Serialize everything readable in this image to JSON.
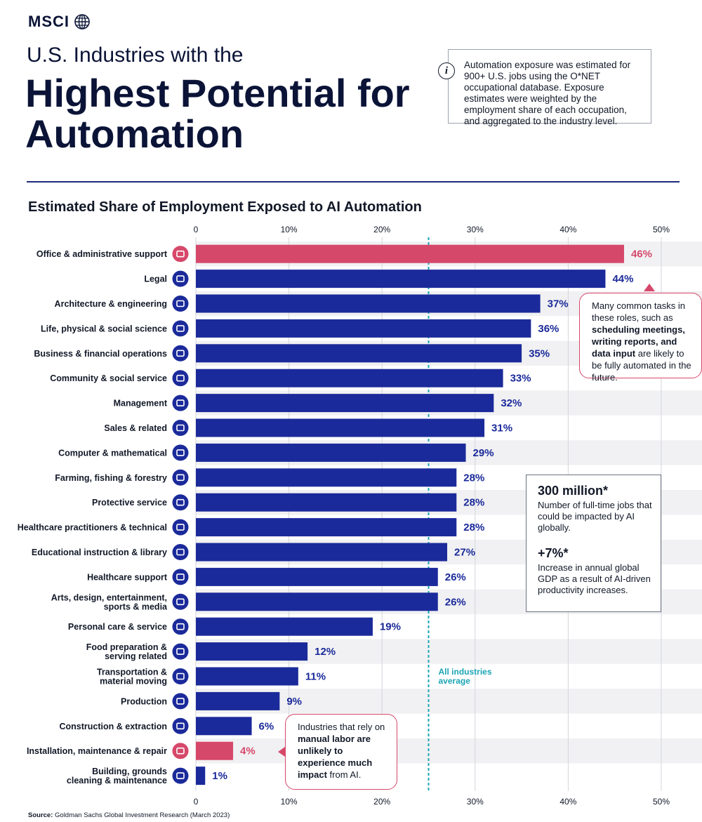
{
  "brand": {
    "name": "MSCI"
  },
  "header": {
    "subtitle": "U.S. Industries with the",
    "title": "Highest Potential for Automation"
  },
  "info": {
    "icon": "info-icon",
    "text": "Automation exposure was estimated for 900+ U.S. jobs using the O*NET occupational database. Exposure estimates were weighted by the employment share of each occupation, and aggregated to the industry level."
  },
  "chart_title": "Estimated Share of Employment Exposed to AI Automation",
  "chart_data": {
    "type": "bar",
    "orientation": "horizontal",
    "title": "Estimated Share of Employment Exposed to AI Automation",
    "xlim": [
      0,
      50
    ],
    "x_ticks": [
      "0",
      "10%",
      "20%",
      "30%",
      "40%",
      "50%"
    ],
    "x_tick_values": [
      0,
      10,
      20,
      30,
      40,
      50
    ],
    "grid": true,
    "categories": [
      "Office & administrative support",
      "Legal",
      "Architecture & engineering",
      "Life, physical & social science",
      "Business & financial operations",
      "Community & social service",
      "Management",
      "Sales & related",
      "Computer & mathematical",
      "Farming, fishing & forestry",
      "Protective service",
      "Healthcare practitioners & technical",
      "Educational instruction & library",
      "Healthcare support",
      "Arts, design, entertainment, sports & media",
      "Personal care & service",
      "Food preparation & serving related",
      "Transportation & material moving",
      "Production",
      "Construction & extraction",
      "Installation, maintenance & repair",
      "Building, grounds cleaning & maintenance"
    ],
    "label_lines": [
      [
        "Office & administrative support"
      ],
      [
        "Legal"
      ],
      [
        "Architecture & engineering"
      ],
      [
        "Life, physical & social science"
      ],
      [
        "Business & financial operations"
      ],
      [
        "Community & social service"
      ],
      [
        "Management"
      ],
      [
        "Sales & related"
      ],
      [
        "Computer & mathematical"
      ],
      [
        "Farming, fishing & forestry"
      ],
      [
        "Protective service"
      ],
      [
        "Healthcare practitioners & technical"
      ],
      [
        "Educational instruction & library"
      ],
      [
        "Healthcare support"
      ],
      [
        "Arts, design, entertainment,",
        "sports & media"
      ],
      [
        "Personal care & service"
      ],
      [
        "Food preparation &",
        "serving related"
      ],
      [
        "Transportation &",
        "material moving"
      ],
      [
        "Production"
      ],
      [
        "Construction & extraction"
      ],
      [
        "Installation, maintenance & repair"
      ],
      [
        "Building, grounds",
        "cleaning & maintenance"
      ]
    ],
    "values": [
      46,
      44,
      37,
      36,
      35,
      33,
      32,
      31,
      29,
      28,
      28,
      28,
      27,
      26,
      26,
      19,
      12,
      11,
      9,
      6,
      4,
      1
    ],
    "value_labels": [
      "46%",
      "44%",
      "37%",
      "36%",
      "35%",
      "33%",
      "32%",
      "31%",
      "29%",
      "28%",
      "28%",
      "28%",
      "27%",
      "26%",
      "26%",
      "19%",
      "12%",
      "11%",
      "9%",
      "6%",
      "4%",
      "1%"
    ],
    "highlighted": [
      "Office & administrative support",
      "Installation, maintenance & repair"
    ],
    "icons": [
      "office-icon",
      "gavel-icon",
      "building-icon",
      "molecule-icon",
      "handshake-icon",
      "community-icon",
      "document-icon",
      "sales-chart-icon",
      "computer-icon",
      "farming-icon",
      "lock-icon",
      "stethoscope-icon",
      "graduation-cap-icon",
      "heart-icon",
      "gamepad-icon",
      "cart-icon",
      "food-icon",
      "truck-icon",
      "factory-icon",
      "oil-rig-icon",
      "robot-arm-icon",
      "city-icon"
    ],
    "reference_line": {
      "value": 25,
      "label_lines": [
        "All industries",
        "average"
      ]
    },
    "colors": {
      "primary": "#1b2a9a",
      "highlight": "#d6486a",
      "average_line": "#1aa5b5"
    }
  },
  "callouts": {
    "office": {
      "text_pre": "Many common tasks in these roles, such as ",
      "text_bold": "scheduling meetings, writing reports, and data input",
      "text_post": " are likely to be fully automated in the future."
    },
    "installation": {
      "text_pre": "Industries that rely on ",
      "text_bold1": "manual labor are unlikely to experience much impact",
      "text_post": " from AI."
    }
  },
  "stats": [
    {
      "value": "300 million*",
      "desc": "Number of full-time jobs that could be impacted by AI globally."
    },
    {
      "value": "+7%*",
      "desc": "Increase in annual global GDP as a result of AI-driven productivity increases."
    }
  ],
  "source": {
    "label": "Source:",
    "text": "Goldman Sachs Global Investment Research (March 2023)"
  }
}
